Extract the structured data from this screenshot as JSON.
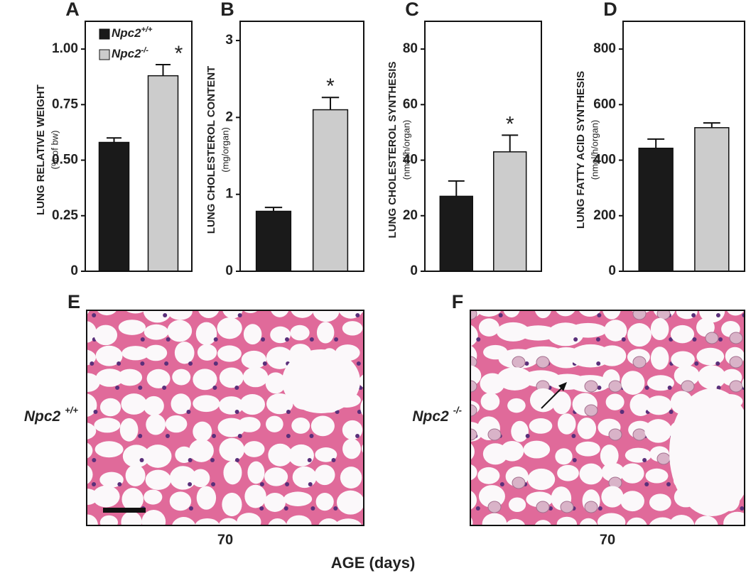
{
  "chart_data": [
    {
      "type": "bar",
      "panel": "A",
      "ylabel": "LUNG RELATIVE WEIGHT",
      "ylabel_sub": "(% of bw)",
      "categories": [
        null,
        null
      ],
      "values": [
        0.58,
        0.88
      ],
      "errors": [
        0.02,
        0.05
      ],
      "colors": [
        "#1a1a1a",
        "#cccccc"
      ],
      "ylim": [
        0,
        1.125
      ],
      "yticks": [
        0,
        0.25,
        {
          "value": 0.5,
          "label": "0.50"
        },
        0.75,
        {
          "value": 1,
          "label": "1.00"
        }
      ],
      "annotations": [
        {
          "text": "*",
          "category": 1
        }
      ],
      "legend": [
        {
          "name": "Npc2",
          "superscript": "+/+",
          "color": "#1a1a1a"
        },
        {
          "name": "Npc2",
          "superscript": "-/-",
          "color": "#cccccc"
        }
      ]
    },
    {
      "type": "bar",
      "panel": "B",
      "ylabel": "LUNG CHOLESTEROL CONTENT",
      "ylabel_sub": "(mg/organ)",
      "categories": [
        null,
        null
      ],
      "values": [
        0.78,
        2.1
      ],
      "errors": [
        0.05,
        0.16
      ],
      "colors": [
        "#1a1a1a",
        "#cccccc"
      ],
      "ylim": [
        0,
        3.25
      ],
      "yticks": [
        0,
        1,
        2,
        3
      ],
      "annotations": [
        {
          "text": "*",
          "category": 1
        }
      ]
    },
    {
      "type": "bar",
      "panel": "C",
      "ylabel": "LUNG CHOLESTEROL SYNTHESIS",
      "ylabel_sub": "(nmol/h/organ)",
      "categories": [
        null,
        null
      ],
      "values": [
        27,
        43
      ],
      "errors": [
        5.5,
        6
      ],
      "colors": [
        "#1a1a1a",
        "#cccccc"
      ],
      "ylim": [
        0,
        90
      ],
      "yticks": [
        0,
        20,
        40,
        60,
        80
      ],
      "annotations": [
        {
          "text": "*",
          "category": 1
        }
      ]
    },
    {
      "type": "bar",
      "panel": "D",
      "ylabel": "LUNG FATTY ACID SYNTHESIS",
      "ylabel_sub": "(nmol/h/organ)",
      "categories": [
        null,
        null
      ],
      "values": [
        443,
        517
      ],
      "errors": [
        33,
        17
      ],
      "colors": [
        "#1a1a1a",
        "#cccccc"
      ],
      "ylim": [
        0,
        900
      ],
      "yticks": [
        0,
        200,
        400,
        600,
        800
      ],
      "annotations": []
    }
  ],
  "histology": {
    "panels": [
      {
        "panel": "E",
        "genotype": "Npc2",
        "superscript": "+/+",
        "age": "70"
      },
      {
        "panel": "F",
        "genotype": "Npc2",
        "superscript": "-/-",
        "age": "70"
      }
    ],
    "xlabel": "AGE (days)"
  }
}
